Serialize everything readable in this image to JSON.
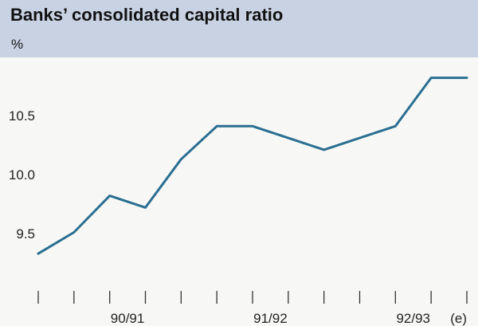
{
  "title": "Banks’ consolidated capital ratio",
  "unit_label": "%",
  "colors": {
    "header_bg": "#c9d2e3",
    "line": "#2a6e92",
    "background": "#f7f8f5"
  },
  "chart_data": {
    "type": "line",
    "title": "Banks’ consolidated capital ratio",
    "ylabel": "%",
    "xlabel": "",
    "x_period_labels": [
      "90/91",
      "91/92",
      "92/93",
      "(e)"
    ],
    "y_ticks": [
      9.5,
      10.0,
      10.5
    ],
    "ylim": [
      9.0,
      11.0
    ],
    "grid": false,
    "legend": "none",
    "series": [
      {
        "values": [
          9.33,
          9.51,
          9.82,
          9.72,
          10.13,
          10.41,
          10.41,
          10.31,
          10.21,
          10.31,
          10.41,
          10.82,
          10.82
        ]
      }
    ]
  }
}
